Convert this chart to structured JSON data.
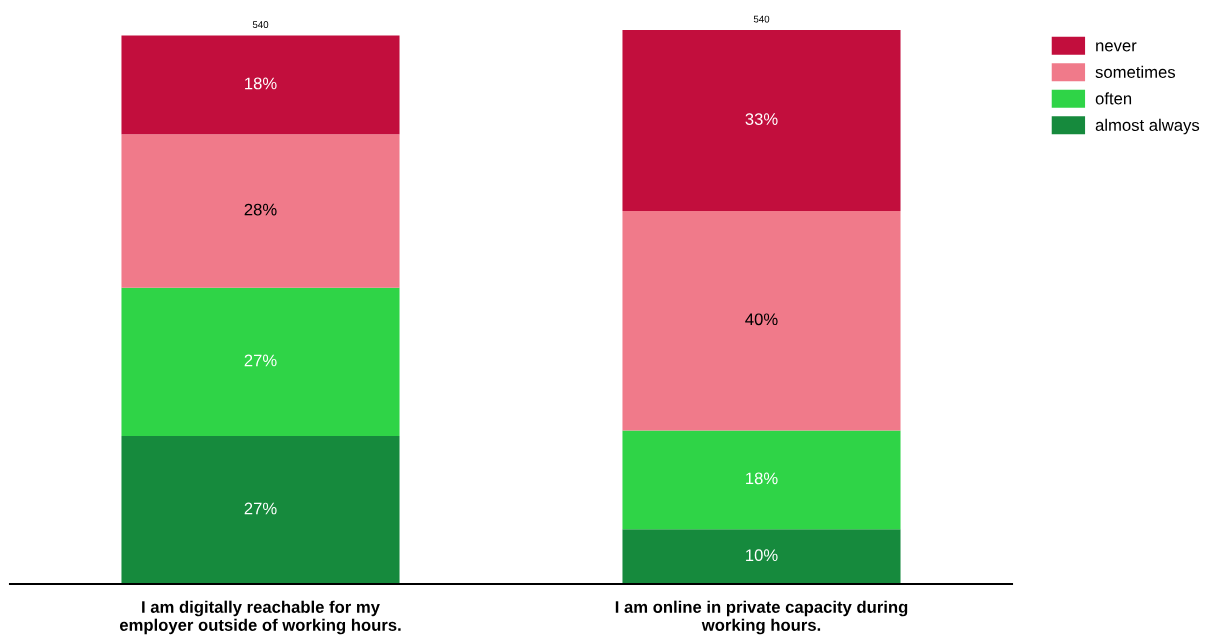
{
  "chart_data": {
    "type": "bar",
    "stacked": true,
    "categories": [
      "I am digitally reachable for my employer outside of working hours.",
      "I am online in private capacity during working hours."
    ],
    "series": [
      {
        "name": "almost always",
        "color": "#168a3d",
        "values": [
          27,
          10
        ],
        "value_labels": [
          "27%",
          "10%"
        ]
      },
      {
        "name": "often",
        "color": "#2fd447",
        "values": [
          27,
          18
        ],
        "value_labels": [
          "27%",
          "18%"
        ]
      },
      {
        "name": "sometimes",
        "color": "#f07a8a",
        "values": [
          28,
          40
        ],
        "value_labels": [
          "28%",
          "40%"
        ]
      },
      {
        "name": "never",
        "color": "#c20e3d",
        "values": [
          18,
          33
        ],
        "value_labels": [
          "18%",
          "33%"
        ]
      }
    ],
    "annotations": [
      {
        "text": "540",
        "x": "I am digitally reachable for my employer outside of working hours.",
        "y": 100
      },
      {
        "text": "540",
        "x": "I am online in private capacity during working hours.",
        "y": 101
      }
    ],
    "legend": "top right",
    "grid": false
  }
}
